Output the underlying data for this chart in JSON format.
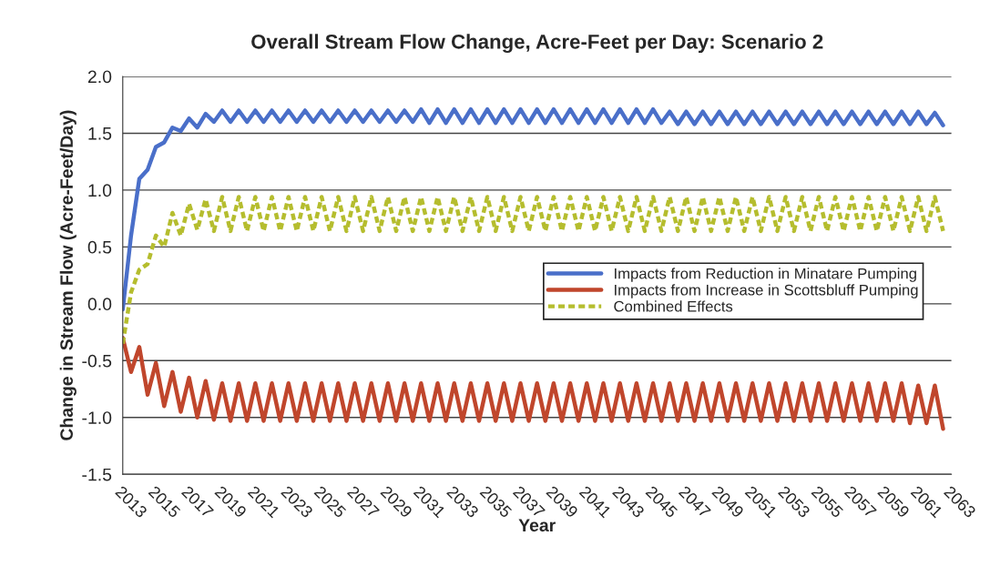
{
  "chart_data": {
    "type": "line",
    "title": "Overall Stream Flow Change, Acre-Feet per Day: Scenario 2",
    "xlabel": "Year",
    "ylabel": "Change in Stream Flow (Acre-Feet/Day)",
    "x": [
      2013,
      2013.5,
      2014,
      2014.5,
      2015,
      2015.5,
      2016,
      2016.5,
      2017,
      2017.5,
      2018,
      2018.5,
      2019,
      2019.5,
      2020,
      2020.5,
      2021,
      2021.5,
      2022,
      2022.5,
      2023,
      2023.5,
      2024,
      2024.5,
      2025,
      2025.5,
      2026,
      2026.5,
      2027,
      2027.5,
      2028,
      2028.5,
      2029,
      2029.5,
      2030,
      2030.5,
      2031,
      2031.5,
      2032,
      2032.5,
      2033,
      2033.5,
      2034,
      2034.5,
      2035,
      2035.5,
      2036,
      2036.5,
      2037,
      2037.5,
      2038,
      2038.5,
      2039,
      2039.5,
      2040,
      2040.5,
      2041,
      2041.5,
      2042,
      2042.5,
      2043,
      2043.5,
      2044,
      2044.5,
      2045,
      2045.5,
      2046,
      2046.5,
      2047,
      2047.5,
      2048,
      2048.5,
      2049,
      2049.5,
      2050,
      2050.5,
      2051,
      2051.5,
      2052,
      2052.5,
      2053,
      2053.5,
      2054,
      2054.5,
      2055,
      2055.5,
      2056,
      2056.5,
      2057,
      2057.5,
      2058,
      2058.5,
      2059,
      2059.5,
      2060,
      2060.5,
      2061,
      2061.5,
      2062,
      2062.5
    ],
    "series": [
      {
        "name": "Impacts from Reduction in Minatare Pumping",
        "color": "#4a6fc9",
        "line_style": "solid",
        "values": [
          -0.05,
          0.6,
          1.1,
          1.18,
          1.38,
          1.42,
          1.55,
          1.52,
          1.63,
          1.55,
          1.67,
          1.6,
          1.7,
          1.6,
          1.7,
          1.6,
          1.7,
          1.6,
          1.7,
          1.6,
          1.7,
          1.6,
          1.7,
          1.6,
          1.7,
          1.6,
          1.7,
          1.6,
          1.7,
          1.6,
          1.7,
          1.6,
          1.7,
          1.6,
          1.7,
          1.6,
          1.71,
          1.59,
          1.71,
          1.59,
          1.71,
          1.59,
          1.71,
          1.59,
          1.71,
          1.59,
          1.71,
          1.59,
          1.71,
          1.59,
          1.71,
          1.59,
          1.71,
          1.59,
          1.71,
          1.59,
          1.71,
          1.59,
          1.71,
          1.59,
          1.71,
          1.59,
          1.71,
          1.59,
          1.71,
          1.59,
          1.69,
          1.58,
          1.69,
          1.58,
          1.69,
          1.58,
          1.69,
          1.58,
          1.69,
          1.58,
          1.69,
          1.58,
          1.69,
          1.58,
          1.69,
          1.58,
          1.69,
          1.58,
          1.69,
          1.58,
          1.69,
          1.58,
          1.69,
          1.58,
          1.69,
          1.58,
          1.69,
          1.58,
          1.69,
          1.58,
          1.69,
          1.58,
          1.68,
          1.57
        ]
      },
      {
        "name": "Impacts from Increase in Scottsbluff Pumping",
        "color": "#c0462c",
        "line_style": "solid",
        "values": [
          -0.3,
          -0.6,
          -0.38,
          -0.8,
          -0.52,
          -0.9,
          -0.6,
          -0.95,
          -0.65,
          -1.0,
          -0.68,
          -1.02,
          -0.7,
          -1.03,
          -0.7,
          -1.03,
          -0.7,
          -1.03,
          -0.7,
          -1.03,
          -0.7,
          -1.03,
          -0.7,
          -1.03,
          -0.7,
          -1.03,
          -0.7,
          -1.03,
          -0.7,
          -1.03,
          -0.7,
          -1.03,
          -0.7,
          -1.03,
          -0.7,
          -1.03,
          -0.7,
          -1.03,
          -0.7,
          -1.03,
          -0.7,
          -1.03,
          -0.7,
          -1.03,
          -0.7,
          -1.03,
          -0.7,
          -1.03,
          -0.7,
          -1.03,
          -0.7,
          -1.03,
          -0.7,
          -1.03,
          -0.7,
          -1.03,
          -0.7,
          -1.03,
          -0.7,
          -1.03,
          -0.7,
          -1.03,
          -0.7,
          -1.03,
          -0.7,
          -1.03,
          -0.7,
          -1.03,
          -0.7,
          -1.03,
          -0.7,
          -1.03,
          -0.7,
          -1.03,
          -0.7,
          -1.03,
          -0.7,
          -1.03,
          -0.7,
          -1.03,
          -0.7,
          -1.03,
          -0.7,
          -1.03,
          -0.7,
          -1.03,
          -0.7,
          -1.03,
          -0.7,
          -1.03,
          -0.7,
          -1.03,
          -0.7,
          -1.03,
          -0.7,
          -1.05,
          -0.72,
          -1.05,
          -0.72,
          -1.1
        ]
      },
      {
        "name": "Combined Effects",
        "color": "#b5bd2e",
        "line_style": "dashed",
        "values": [
          -0.35,
          0.1,
          0.3,
          0.35,
          0.6,
          0.5,
          0.8,
          0.6,
          0.88,
          0.65,
          0.92,
          0.64,
          0.94,
          0.64,
          0.94,
          0.64,
          0.94,
          0.64,
          0.94,
          0.64,
          0.94,
          0.64,
          0.94,
          0.64,
          0.94,
          0.64,
          0.94,
          0.64,
          0.94,
          0.64,
          0.94,
          0.64,
          0.94,
          0.64,
          0.94,
          0.64,
          0.94,
          0.64,
          0.94,
          0.64,
          0.94,
          0.64,
          0.94,
          0.64,
          0.94,
          0.64,
          0.94,
          0.64,
          0.94,
          0.64,
          0.94,
          0.64,
          0.94,
          0.64,
          0.94,
          0.64,
          0.94,
          0.64,
          0.94,
          0.64,
          0.94,
          0.64,
          0.94,
          0.64,
          0.94,
          0.64,
          0.94,
          0.64,
          0.94,
          0.64,
          0.94,
          0.64,
          0.94,
          0.64,
          0.94,
          0.64,
          0.94,
          0.64,
          0.94,
          0.64,
          0.94,
          0.64,
          0.94,
          0.64,
          0.94,
          0.64,
          0.94,
          0.64,
          0.94,
          0.64,
          0.94,
          0.64,
          0.94,
          0.64,
          0.94,
          0.64,
          0.94,
          0.64,
          0.94,
          0.64
        ]
      }
    ],
    "xlim": [
      2013,
      2063
    ],
    "xticks": [
      2013,
      2015,
      2017,
      2019,
      2021,
      2023,
      2025,
      2027,
      2029,
      2031,
      2033,
      2035,
      2037,
      2039,
      2041,
      2043,
      2045,
      2047,
      2049,
      2051,
      2053,
      2055,
      2057,
      2059,
      2061,
      2063
    ],
    "ylim": [
      -1.5,
      2.0
    ],
    "yticks": [
      {
        "value": -1.5,
        "label": "-1.5"
      },
      {
        "value": -1.0,
        "label": "-1.0"
      },
      {
        "value": -0.5,
        "label": "-0.5"
      },
      {
        "value": 0.0,
        "label": "0.0"
      },
      {
        "value": 0.5,
        "label": "0.5"
      },
      {
        "value": 1.0,
        "label": "1.0"
      },
      {
        "value": 1.5,
        "label": "1.5"
      },
      {
        "value": 2.0,
        "label": "2.0"
      }
    ],
    "grid": "y",
    "legend": "right",
    "marker": "none"
  }
}
